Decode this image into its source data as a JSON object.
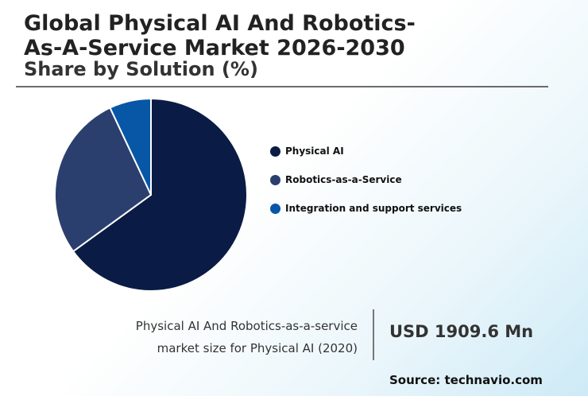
{
  "header": {
    "title": "Global Physical AI And Robotics-As-A-Service Market 2026-2030",
    "subtitle": "Share by Solution (%)"
  },
  "chart_data": {
    "type": "pie",
    "title": "Global Physical AI And Robotics-As-A-Service Market 2026-2030",
    "subtitle": "Share by Solution (%)",
    "legend_position": "right",
    "slices": [
      {
        "label": "Physical AI",
        "value": 65,
        "color": "#0a1c45"
      },
      {
        "label": "Robotics-as-a-Service",
        "value": 28,
        "color": "#2b3f6f"
      },
      {
        "label": "Integration and support services",
        "value": 7,
        "color": "#0757a6"
      }
    ]
  },
  "stat": {
    "label_line1": "Physical AI And Robotics-as-a-service",
    "label_line2": "market size for Physical AI (2020)",
    "value": "USD 1909.6 Mn"
  },
  "footer": {
    "source": "Source: technavio.com"
  }
}
